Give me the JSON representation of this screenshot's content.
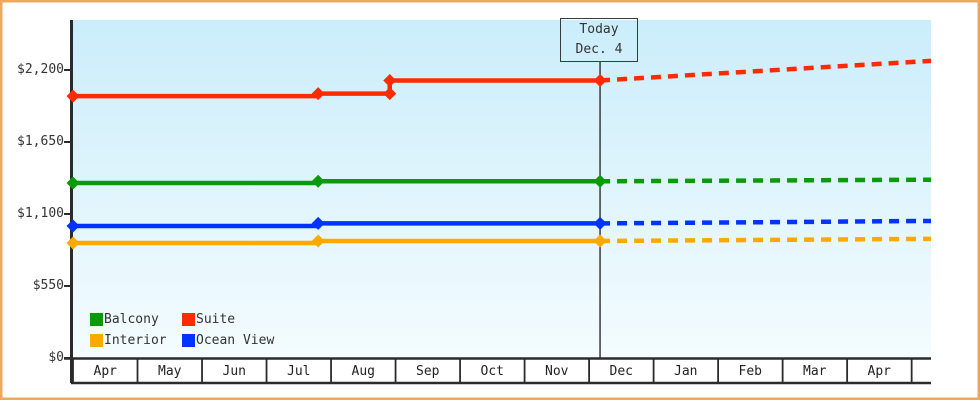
{
  "page": {
    "border_color": "#eda85e",
    "axis_color": "#2b2b2b",
    "plot_gradient_top": "#cbedfb",
    "plot_gradient_bottom": "#f4fcfe"
  },
  "chart_data": {
    "type": "line",
    "title": "",
    "xlabel": "",
    "ylabel": "",
    "y_axis": {
      "ticks": [
        0,
        550,
        1100,
        1650,
        2200
      ],
      "labels": [
        "$0",
        "$550",
        "$1,100",
        "$1,650",
        "$2,200"
      ]
    },
    "x_axis": {
      "months": [
        "Apr",
        "May",
        "Jun",
        "Jul",
        "Aug",
        "Sep",
        "Oct",
        "Nov",
        "Dec",
        "Jan",
        "Feb",
        "Mar",
        "Apr"
      ],
      "x_max": 13.3
    },
    "today": {
      "x": 8.17,
      "line1": "Today",
      "line2": "Dec. 4"
    },
    "series": [
      {
        "name": "Suite",
        "color": "#ff2b00",
        "history": [
          [
            0,
            2000
          ],
          [
            3.8,
            2000
          ],
          [
            3.8,
            2020
          ],
          [
            4.91,
            2020
          ],
          [
            4.91,
            2120
          ],
          [
            8.17,
            2120
          ]
        ],
        "forecast": [
          [
            8.17,
            2120
          ],
          [
            13.3,
            2270
          ]
        ],
        "markers": [
          [
            0,
            2000
          ],
          [
            3.8,
            2020
          ],
          [
            4.91,
            2020
          ],
          [
            4.91,
            2120
          ],
          [
            8.17,
            2120
          ]
        ]
      },
      {
        "name": "Balcony",
        "color": "#0a9a0a",
        "history": [
          [
            0,
            1337
          ],
          [
            3.8,
            1337
          ],
          [
            3.8,
            1350
          ],
          [
            8.17,
            1350
          ]
        ],
        "forecast": [
          [
            8.17,
            1350
          ],
          [
            13.3,
            1362
          ]
        ],
        "markers": [
          [
            0,
            1337
          ],
          [
            3.8,
            1350
          ],
          [
            8.17,
            1350
          ]
        ]
      },
      {
        "name": "Ocean View",
        "color": "#0033ff",
        "history": [
          [
            0,
            1008
          ],
          [
            3.8,
            1008
          ],
          [
            3.8,
            1028
          ],
          [
            8.17,
            1028
          ]
        ],
        "forecast": [
          [
            8.17,
            1028
          ],
          [
            13.3,
            1047
          ]
        ],
        "markers": [
          [
            0,
            1008
          ],
          [
            3.8,
            1028
          ],
          [
            8.17,
            1028
          ]
        ]
      },
      {
        "name": "Interior",
        "color": "#ffa800",
        "history": [
          [
            0,
            878
          ],
          [
            3.8,
            878
          ],
          [
            3.8,
            894
          ],
          [
            8.17,
            894
          ]
        ],
        "forecast": [
          [
            8.17,
            894
          ],
          [
            13.3,
            910
          ]
        ],
        "markers": [
          [
            0,
            878
          ],
          [
            3.8,
            894
          ],
          [
            8.17,
            894
          ]
        ]
      }
    ],
    "legend": {
      "rows": [
        [
          "Balcony",
          "Suite"
        ],
        [
          "Interior",
          "Ocean View"
        ]
      ]
    }
  }
}
